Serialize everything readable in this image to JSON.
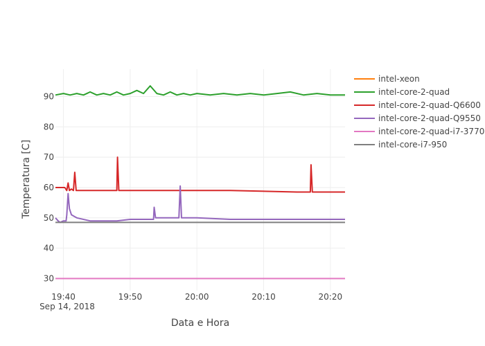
{
  "chart_data": {
    "type": "line",
    "xlabel": "Data e Hora",
    "ylabel": "Temperatura [C]",
    "date_label": "Sep 14, 2018",
    "x_ticks": [
      "19:40",
      "19:50",
      "20:00",
      "20:10",
      "20:20"
    ],
    "x_tick_minutes": [
      0,
      10,
      20,
      30,
      40
    ],
    "xlim_minutes_after_1940": [
      -1.2,
      42.2
    ],
    "y_ticks": [
      30,
      40,
      50,
      60,
      70,
      80,
      90
    ],
    "ylim": [
      26,
      99
    ],
    "grid": true,
    "legend_position": "right",
    "series": [
      {
        "name": "intel-xeon",
        "color": "#ff7f0e",
        "width": 2,
        "points": [
          [
            -1.2,
            30
          ],
          [
            42.2,
            30
          ]
        ]
      },
      {
        "name": "intel-core-2-quad",
        "color": "#2ca02c",
        "width": 2,
        "points": [
          [
            -1.2,
            90.5
          ],
          [
            0,
            91
          ],
          [
            1,
            90.5
          ],
          [
            2,
            91
          ],
          [
            3,
            90.5
          ],
          [
            4,
            91.5
          ],
          [
            5,
            90.5
          ],
          [
            6,
            91
          ],
          [
            7,
            90.5
          ],
          [
            8,
            91.5
          ],
          [
            9,
            90.5
          ],
          [
            10,
            91
          ],
          [
            11,
            92
          ],
          [
            12,
            91
          ],
          [
            13,
            93.5
          ],
          [
            14,
            91
          ],
          [
            15,
            90.5
          ],
          [
            16,
            91.5
          ],
          [
            17,
            90.5
          ],
          [
            18,
            91
          ],
          [
            19,
            90.5
          ],
          [
            20,
            91
          ],
          [
            22,
            90.5
          ],
          [
            24,
            91
          ],
          [
            26,
            90.5
          ],
          [
            28,
            91
          ],
          [
            30,
            90.5
          ],
          [
            32,
            91
          ],
          [
            34,
            91.5
          ],
          [
            36,
            90.5
          ],
          [
            38,
            91
          ],
          [
            40,
            90.5
          ],
          [
            42.2,
            90.5
          ]
        ]
      },
      {
        "name": "intel-core-2-quad-Q6600",
        "color": "#d62728",
        "width": 2,
        "points": [
          [
            -1.2,
            60
          ],
          [
            0.2,
            60
          ],
          [
            0.5,
            59
          ],
          [
            0.7,
            61.5
          ],
          [
            0.9,
            59
          ],
          [
            1.2,
            59.5
          ],
          [
            1.5,
            59
          ],
          [
            1.7,
            65
          ],
          [
            1.9,
            59
          ],
          [
            3,
            59
          ],
          [
            8,
            59
          ],
          [
            8.1,
            70
          ],
          [
            8.3,
            59
          ],
          [
            15,
            59
          ],
          [
            17,
            59
          ],
          [
            25,
            59
          ],
          [
            35,
            58.5
          ],
          [
            37,
            58.5
          ],
          [
            37.1,
            67.5
          ],
          [
            37.3,
            58.5
          ],
          [
            42.2,
            58.5
          ]
        ]
      },
      {
        "name": "intel-core-2-quad-Q9550",
        "color": "#9467bd",
        "width": 2,
        "points": [
          [
            -1.2,
            50
          ],
          [
            -0.8,
            49
          ],
          [
            -0.5,
            48.5
          ],
          [
            0,
            49
          ],
          [
            0.4,
            49
          ],
          [
            0.5,
            51
          ],
          [
            0.7,
            58
          ],
          [
            0.9,
            53
          ],
          [
            1.2,
            51
          ],
          [
            1.6,
            50.5
          ],
          [
            2,
            50
          ],
          [
            4,
            49
          ],
          [
            8,
            49
          ],
          [
            10,
            49.5
          ],
          [
            12,
            49.5
          ],
          [
            13.5,
            49.5
          ],
          [
            13.6,
            53.5
          ],
          [
            13.8,
            50
          ],
          [
            16,
            50
          ],
          [
            17.3,
            50
          ],
          [
            17.5,
            60.5
          ],
          [
            17.7,
            50
          ],
          [
            20,
            50
          ],
          [
            25,
            49.5
          ],
          [
            30,
            49.5
          ],
          [
            35,
            49.5
          ],
          [
            40,
            49.5
          ],
          [
            42.2,
            49.5
          ]
        ]
      },
      {
        "name": "intel-core-2-quad-i7-3770",
        "color": "#e377c2",
        "width": 2,
        "points": [
          [
            -1.2,
            30
          ],
          [
            42.2,
            30
          ]
        ]
      },
      {
        "name": "intel-core-i7-950",
        "color": "#7f7f7f",
        "width": 2,
        "points": [
          [
            -1.2,
            48.5
          ],
          [
            42.2,
            48.5
          ]
        ]
      }
    ]
  }
}
